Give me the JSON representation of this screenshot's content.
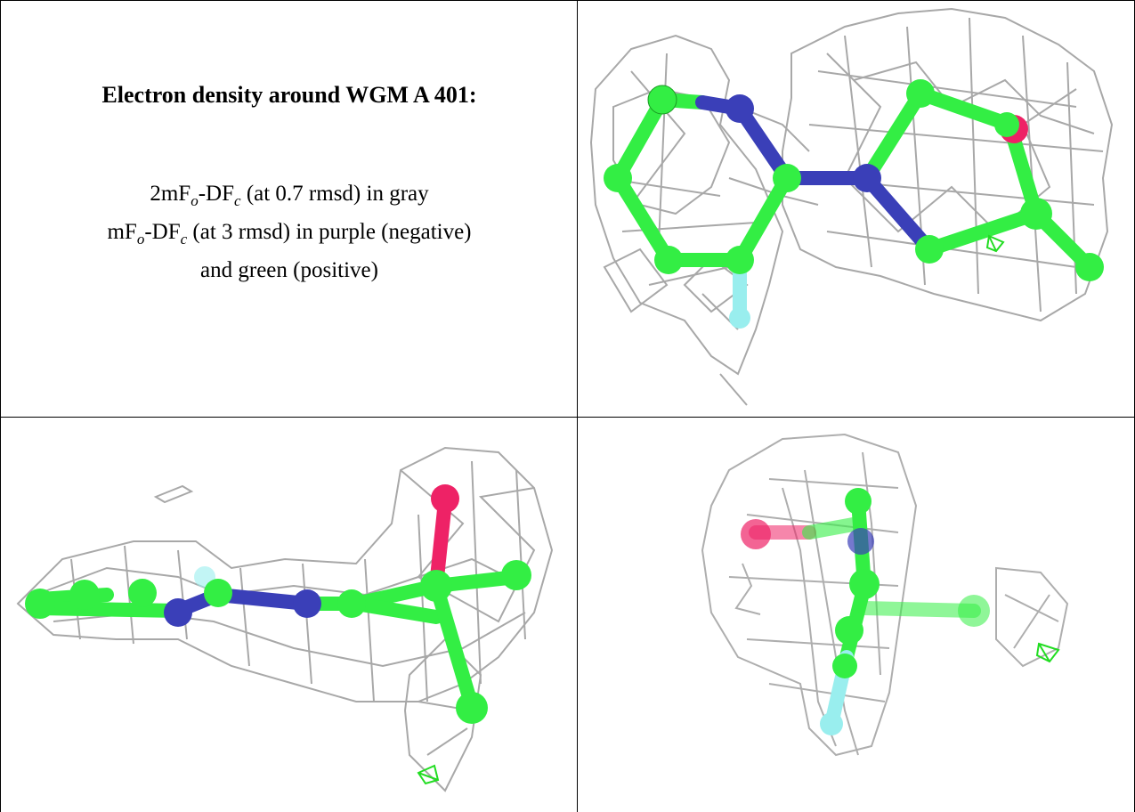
{
  "ligand_panel": {
    "title": "Electron density around WGM A 401:",
    "map_2fofc": {
      "prefix": "2mF",
      "sub_o": "o",
      "mid": "-DF",
      "sub_c": "c",
      "suffix": " (at 0.7 rmsd) in gray"
    },
    "map_fofc": {
      "prefix": "mF",
      "sub_o": "o",
      "mid": "-DF",
      "sub_c": "c",
      "suffix": " (at 3 rmsd) in purple (negative)"
    },
    "map_fofc_cont": "and green (positive)"
  },
  "colors": {
    "carbon": "#33ee44",
    "nitrogen": "#3a3fb8",
    "oxygen": "#ee2266",
    "fluorine": "#99eeee",
    "density_2fofc": "#999999",
    "density_positive": "#22dd22"
  },
  "views": [
    "top-view",
    "side-view",
    "end-view"
  ]
}
